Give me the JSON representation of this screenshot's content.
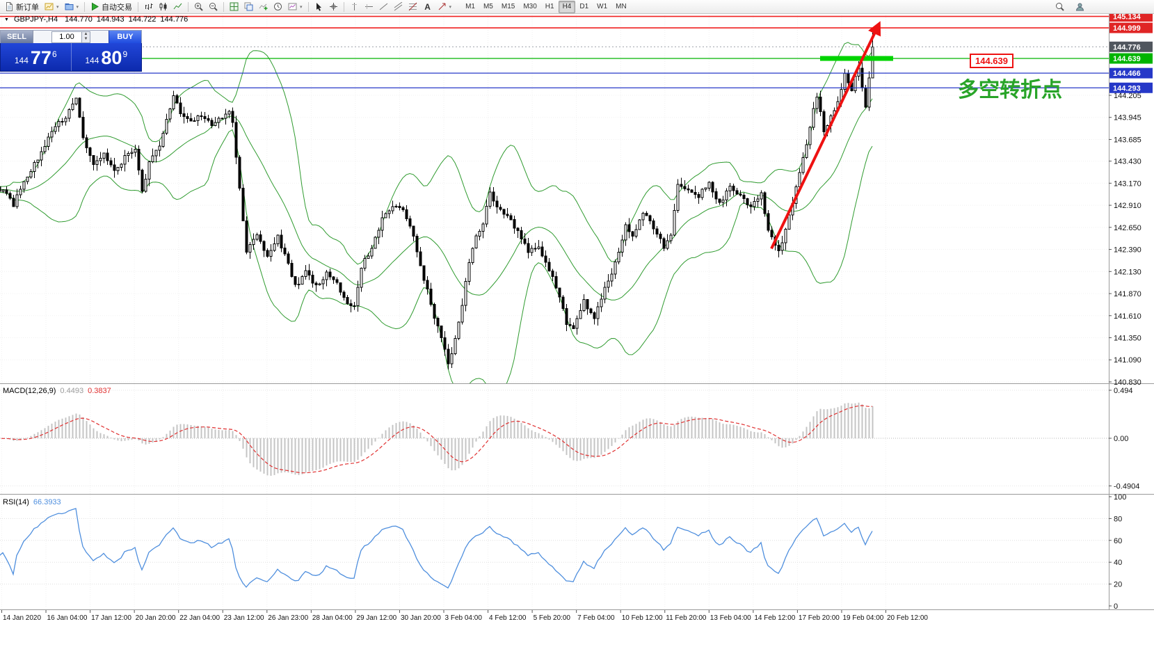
{
  "toolbar": {
    "new_order": "新订单",
    "autotrading": "自动交易",
    "timeframes": [
      "M1",
      "M5",
      "M15",
      "M30",
      "H1",
      "H4",
      "D1",
      "W1",
      "MN"
    ],
    "active_timeframe": "H4",
    "icon_names": [
      "new-order-icon",
      "new-chart-icon",
      "profiles-icon",
      "autotrading-play-icon",
      "bar-chart-icon",
      "candlestick-chart-icon",
      "line-chart-icon",
      "zoom-in-icon",
      "zoom-out-icon",
      "tile-windows-icon",
      "cascade-windows-icon",
      "indicators-icon",
      "periods-icon",
      "templates-icon",
      "cursor-icon",
      "crosshair-icon",
      "vertical-line-icon",
      "horizontal-line-icon",
      "trendline-icon",
      "channel-icon",
      "fibonacci-icon",
      "text-tool-icon",
      "arrow-tool-icon",
      "search-icon",
      "account-icon"
    ]
  },
  "chart_header": {
    "symbol": "GBPJPY-,H4",
    "open": "144.770",
    "high": "144.943",
    "low": "144.722",
    "close": "144.776"
  },
  "trade_panel": {
    "sell_label": "SELL",
    "buy_label": "BUY",
    "lot_value": "1.00",
    "sell_small": "144",
    "sell_big": "77",
    "sell_sup": "6",
    "buy_small": "144",
    "buy_big": "80",
    "buy_sup": "9"
  },
  "annotations": {
    "price_label": "144.639",
    "note": "多空转折点"
  },
  "indicator_headers": {
    "macd_label": "MACD(12,26,9)",
    "macd_main": "0.4493",
    "macd_signal": "0.3837",
    "rsi_label": "RSI(14)",
    "rsi_value": "66.3933"
  },
  "chart_data": {
    "type": "candlestick",
    "symbol": "GBPJPY-",
    "timeframe": "H4",
    "ohlc_current": {
      "open": 144.77,
      "high": 144.943,
      "low": 144.722,
      "close": 144.776
    },
    "price_range": [
      140.81,
      145.17
    ],
    "y_axis": {
      "scale_labels": [
        144.205,
        143.945,
        143.685,
        143.43,
        143.17,
        142.91,
        142.65,
        142.39,
        142.13,
        141.87,
        141.61,
        141.35,
        141.09,
        140.83
      ],
      "badges": [
        {
          "text": "145.134",
          "color": "#e02525"
        },
        {
          "text": "144.999",
          "color": "#e02525"
        },
        {
          "text": "144.776",
          "color": "#50565e"
        },
        {
          "text": "144.639",
          "color": "#00b400"
        },
        {
          "text": "144.466",
          "color": "#2638c8"
        },
        {
          "text": "144.293",
          "color": "#2638c8"
        }
      ]
    },
    "h_lines": [
      {
        "price": 145.134,
        "color": "#f02020",
        "width": 1.6
      },
      {
        "price": 144.999,
        "color": "#f02020",
        "width": 1.6
      },
      {
        "price": 144.776,
        "color": "#9aa0a8",
        "width": 1,
        "dash": "2,3"
      },
      {
        "price": 144.639,
        "color": "#00b400",
        "width": 1.2
      },
      {
        "price": 144.466,
        "color": "#2638c8",
        "width": 1.2
      },
      {
        "price": 144.293,
        "color": "#2638c8",
        "width": 1.2
      }
    ],
    "support_bar": {
      "price": 144.639,
      "from_bar": 235,
      "to_bar": 256,
      "color": "#00d400",
      "thickness": 7
    },
    "trend_arrow": {
      "from_bar": 221,
      "from_price": 142.4,
      "to_bar": 252,
      "to_price": 145.05,
      "color": "#ee1111"
    },
    "x_axis": {
      "labels": [
        "14 Jan 2020",
        "16 Jan 04:00",
        "17 Jan 12:00",
        "20 Jan 20:00",
        "22 Jan 04:00",
        "23 Jan 12:00",
        "26 Jan 23:00",
        "28 Jan 04:00",
        "29 Jan 12:00",
        "30 Jan 20:00",
        "3 Feb 04:00",
        "4 Feb 12:00",
        "5 Feb 20:00",
        "7 Feb 04:00",
        "10 Feb 12:00",
        "11 Feb 20:00",
        "13 Feb 04:00",
        "14 Feb 12:00",
        "17 Feb 20:00",
        "19 Feb 04:00",
        "20 Feb 12:00"
      ]
    },
    "price_path": [
      [
        0,
        143.1
      ],
      [
        3,
        142.92
      ],
      [
        6,
        143.2
      ],
      [
        10,
        143.45
      ],
      [
        14,
        143.8
      ],
      [
        18,
        143.95
      ],
      [
        21,
        144.18
      ],
      [
        23,
        143.72
      ],
      [
        26,
        143.38
      ],
      [
        29,
        143.52
      ],
      [
        32,
        143.3
      ],
      [
        35,
        143.48
      ],
      [
        38,
        143.58
      ],
      [
        40,
        143.05
      ],
      [
        42,
        143.42
      ],
      [
        45,
        143.6
      ],
      [
        48,
        144.05
      ],
      [
        49,
        144.22
      ],
      [
        51,
        144.0
      ],
      [
        54,
        143.88
      ],
      [
        57,
        143.98
      ],
      [
        60,
        143.85
      ],
      [
        63,
        143.95
      ],
      [
        65,
        144.0
      ],
      [
        66,
        143.88
      ],
      [
        68,
        143.1
      ],
      [
        70,
        142.38
      ],
      [
        73,
        142.55
      ],
      [
        76,
        142.32
      ],
      [
        79,
        142.55
      ],
      [
        82,
        142.2
      ],
      [
        84,
        141.95
      ],
      [
        87,
        142.12
      ],
      [
        90,
        141.95
      ],
      [
        93,
        142.1
      ],
      [
        96,
        141.98
      ],
      [
        99,
        141.78
      ],
      [
        101,
        141.7
      ],
      [
        103,
        142.18
      ],
      [
        106,
        142.42
      ],
      [
        109,
        142.75
      ],
      [
        112,
        142.92
      ],
      [
        115,
        142.85
      ],
      [
        118,
        142.55
      ],
      [
        121,
        142.05
      ],
      [
        124,
        141.6
      ],
      [
        127,
        141.2
      ],
      [
        128,
        141.02
      ],
      [
        130,
        141.35
      ],
      [
        132,
        141.75
      ],
      [
        134,
        142.25
      ],
      [
        136,
        142.55
      ],
      [
        138,
        142.7
      ],
      [
        140,
        143.05
      ],
      [
        142,
        142.9
      ],
      [
        145,
        142.78
      ],
      [
        148,
        142.6
      ],
      [
        151,
        142.35
      ],
      [
        154,
        142.42
      ],
      [
        157,
        142.15
      ],
      [
        160,
        141.85
      ],
      [
        162,
        141.52
      ],
      [
        164,
        141.45
      ],
      [
        167,
        141.78
      ],
      [
        170,
        141.58
      ],
      [
        173,
        141.92
      ],
      [
        176,
        142.22
      ],
      [
        179,
        142.68
      ],
      [
        181,
        142.55
      ],
      [
        184,
        142.82
      ],
      [
        187,
        142.65
      ],
      [
        190,
        142.42
      ],
      [
        192,
        142.55
      ],
      [
        194,
        143.15
      ],
      [
        197,
        143.08
      ],
      [
        200,
        143.02
      ],
      [
        203,
        143.18
      ],
      [
        206,
        142.92
      ],
      [
        209,
        143.12
      ],
      [
        212,
        143.02
      ],
      [
        215,
        142.88
      ],
      [
        218,
        143.05
      ],
      [
        220,
        142.62
      ],
      [
        223,
        142.35
      ],
      [
        226,
        142.78
      ],
      [
        229,
        143.3
      ],
      [
        231,
        143.65
      ],
      [
        233,
        144.05
      ],
      [
        234,
        144.2
      ],
      [
        236,
        143.8
      ],
      [
        238,
        143.95
      ],
      [
        240,
        144.15
      ],
      [
        242,
        144.45
      ],
      [
        244,
        144.28
      ],
      [
        246,
        144.55
      ],
      [
        248,
        144.08
      ],
      [
        250,
        144.776
      ]
    ],
    "indicators": {
      "bollinger": {
        "period": 20,
        "deviation": 2,
        "color": "#2f9b2f"
      },
      "macd": {
        "params": "12,26,9",
        "axis_labels": [
          "0.494",
          "0.00",
          "-0.4904"
        ],
        "histogram_color": "#c4c4c4",
        "signal_color": "#e03030"
      },
      "rsi": {
        "period": 14,
        "axis_labels": [
          "100",
          "80",
          "60",
          "40",
          "20",
          "0"
        ],
        "line_color": "#4f8fde"
      }
    }
  }
}
